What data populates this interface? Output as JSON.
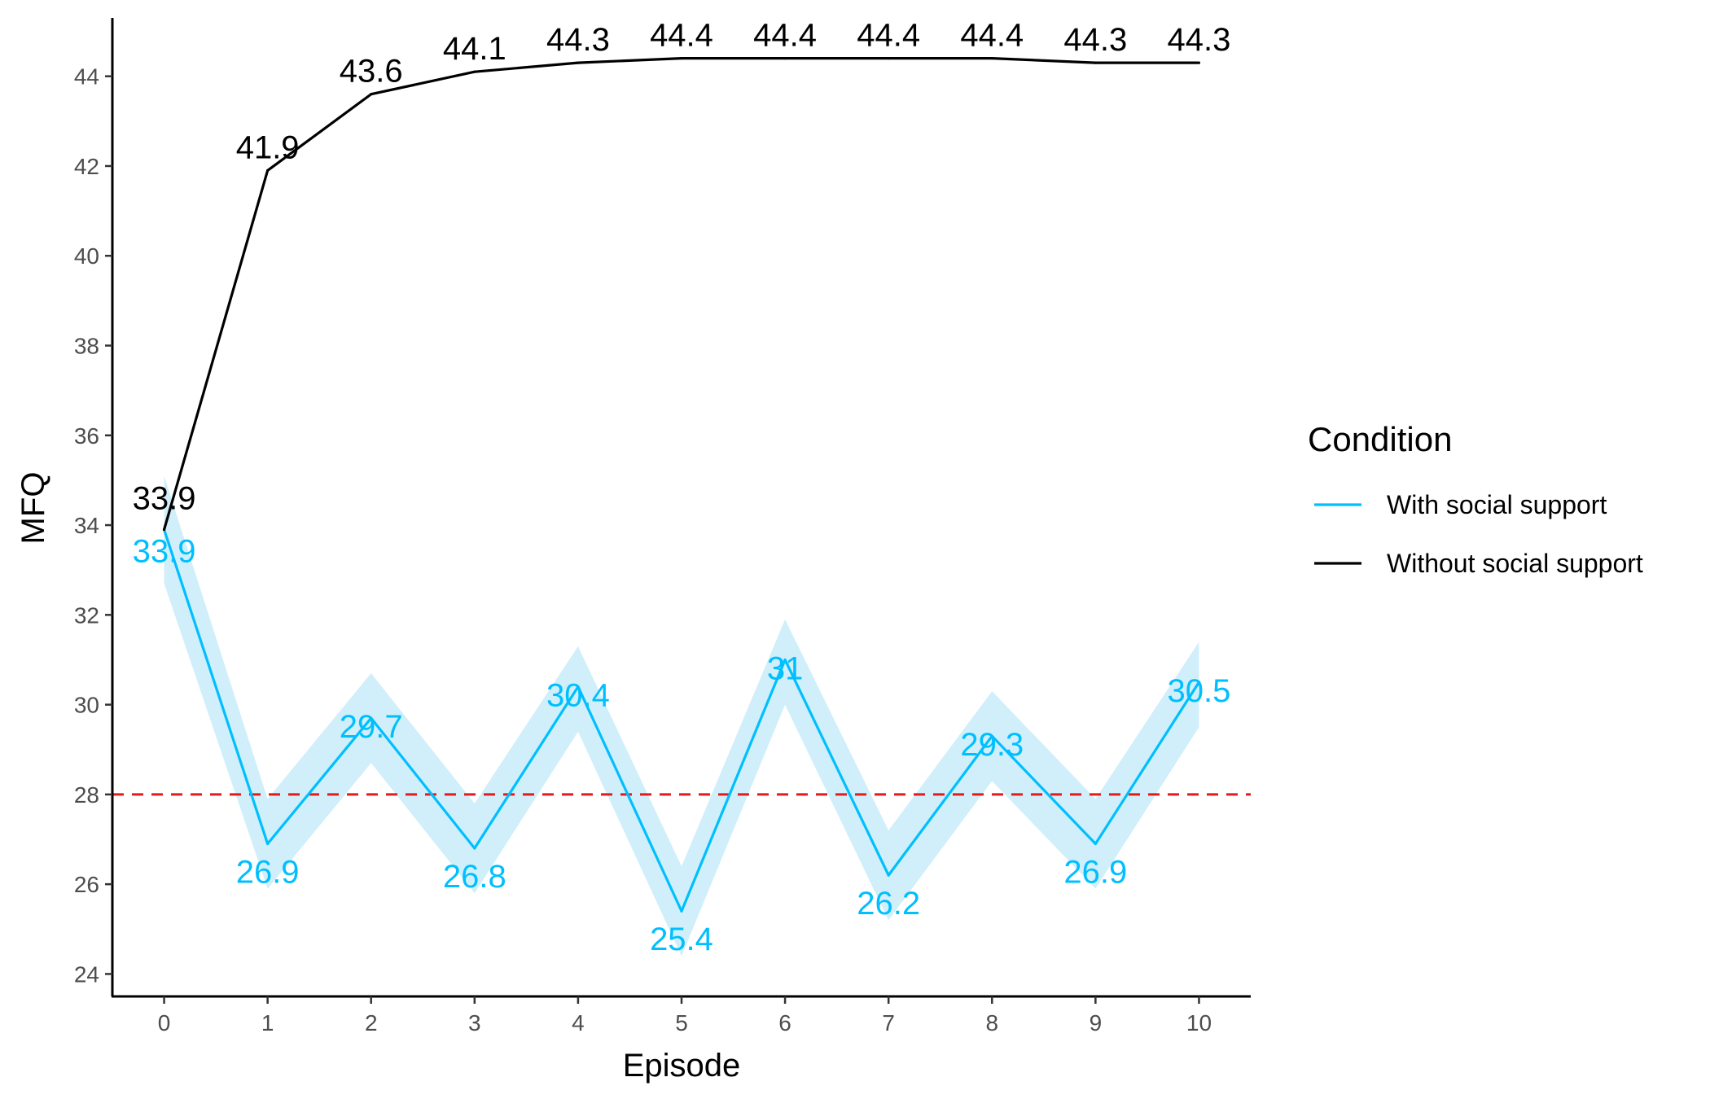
{
  "chart_data": {
    "type": "line",
    "xlabel": "Episode",
    "ylabel": "MFQ",
    "x": [
      0,
      1,
      2,
      3,
      4,
      5,
      6,
      7,
      8,
      9,
      10
    ],
    "x_ticks": [
      "0",
      "1",
      "2",
      "3",
      "4",
      "5",
      "6",
      "7",
      "8",
      "9",
      "10"
    ],
    "xlim": [
      -0.5,
      10.5
    ],
    "y_ticks": [
      24,
      26,
      28,
      30,
      32,
      34,
      36,
      38,
      40,
      42,
      44
    ],
    "ylim": [
      23.5,
      45.3
    ],
    "grid": false,
    "legend": {
      "title": "Condition",
      "placement": "right"
    },
    "reference_line": {
      "y": 28,
      "color": "#e31a1c",
      "style": "dashed"
    },
    "series": [
      {
        "name": "With social support",
        "color": "#00bfff",
        "band_color": "#cdeefa",
        "values": [
          33.9,
          26.9,
          29.7,
          26.8,
          30.4,
          25.4,
          31.0,
          26.2,
          29.3,
          26.9,
          30.5
        ],
        "band_lower": [
          32.7,
          25.9,
          28.7,
          25.8,
          29.4,
          24.4,
          30.0,
          25.2,
          28.3,
          25.9,
          29.5
        ],
        "band_upper": [
          35.1,
          27.9,
          30.7,
          27.8,
          31.3,
          26.4,
          31.9,
          27.2,
          30.3,
          27.9,
          31.4
        ],
        "labels": [
          "33.9",
          "26.9",
          "29.7",
          "26.8",
          "30.4",
          "25.4",
          "31",
          "26.2",
          "29.3",
          "26.9",
          "30.5"
        ]
      },
      {
        "name": "Without social support",
        "color": "#000000",
        "values": [
          33.9,
          41.9,
          43.6,
          44.1,
          44.3,
          44.4,
          44.4,
          44.4,
          44.4,
          44.3,
          44.3
        ],
        "labels": [
          "33.9",
          "41.9",
          "43.6",
          "44.1",
          "44.3",
          "44.4",
          "44.4",
          "44.4",
          "44.4",
          "44.3",
          "44.3"
        ]
      }
    ]
  }
}
